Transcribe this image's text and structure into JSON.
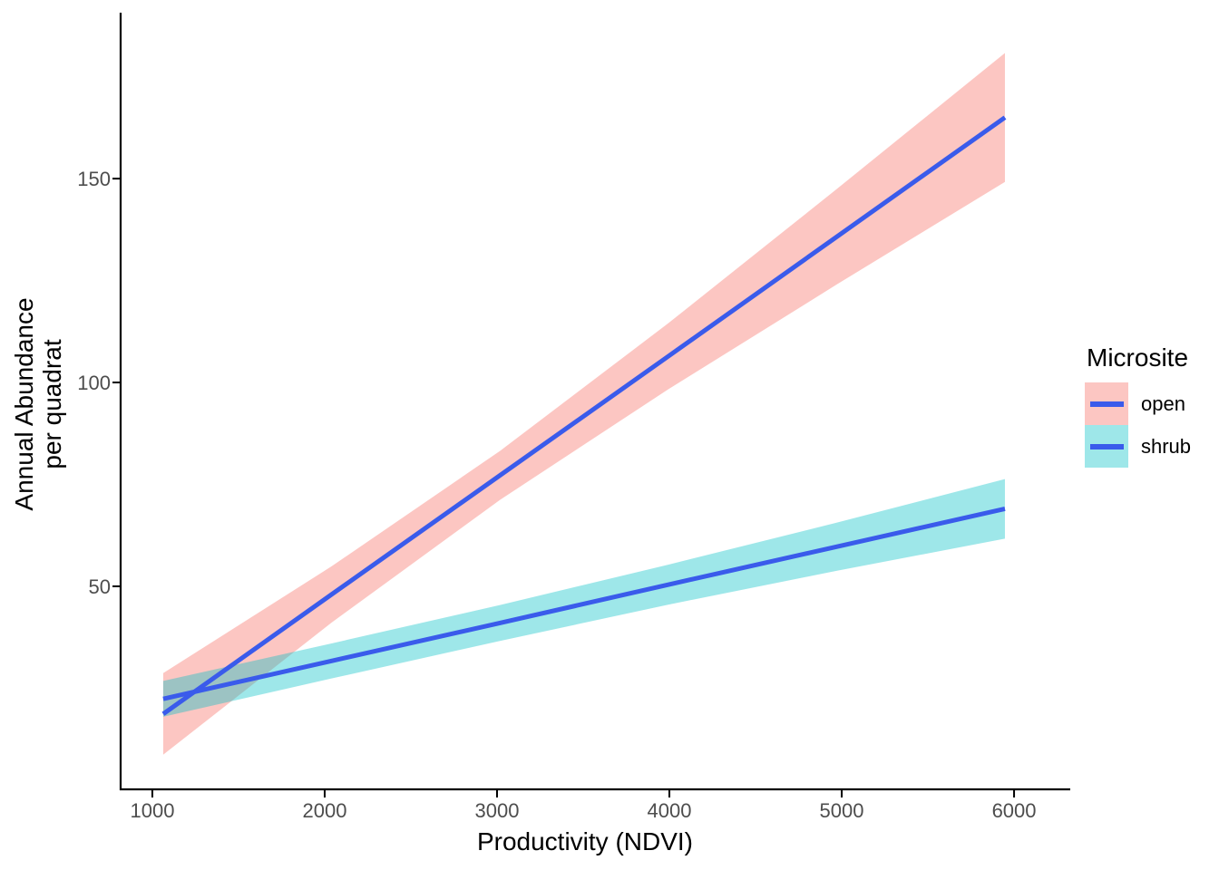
{
  "figure": {
    "background": "#FFFFFF"
  },
  "chart_data": {
    "type": "line",
    "title": "",
    "xlabel": "Productivity (NDVI)",
    "ylabel_lines": [
      "Annual Abundance",
      "per quadrat"
    ],
    "xlim": [
      816,
      6326
    ],
    "ylim": [
      0.2,
      190.7
    ],
    "x_ticks": [
      1000,
      2000,
      3000,
      4000,
      5000,
      6000
    ],
    "y_ticks": [
      50,
      100,
      150
    ],
    "grid": "off",
    "axis_color": "#000000",
    "tick_label_color": "#4D4D4D",
    "line_color": "#3A5BEB",
    "legend": {
      "title": "Microsite",
      "position": "right",
      "entries": [
        {
          "label": "open",
          "fill": "rgba(248,118,109,0.42)",
          "line_color": "#3A5BEB"
        },
        {
          "label": "shrub",
          "fill": "rgba(0,191,196,0.38)",
          "line_color": "#3A5BEB"
        }
      ]
    },
    "series": [
      {
        "name": "open",
        "style": "line+ribbon",
        "line_color": "#3A5BEB",
        "ribbon_fill": "rgba(248,118,109,0.42)",
        "x": [
          1063,
          2040,
          3017,
          3993,
          4970,
          5947
        ],
        "y_fit": [
          18.7,
          48.0,
          77.2,
          106.4,
          135.7,
          165.0
        ],
        "y_lower": [
          8.7,
          41.1,
          71.2,
          98.3,
          124.0,
          149.2
        ],
        "y_upper": [
          28.7,
          54.9,
          83.2,
          114.5,
          147.4,
          180.8
        ]
      },
      {
        "name": "shrub",
        "style": "line+ribbon",
        "line_color": "#3A5BEB",
        "ribbon_fill": "rgba(0,191,196,0.38)",
        "x": [
          1063,
          2040,
          3017,
          3993,
          4970,
          5947
        ],
        "y_fit": [
          22.4,
          31.7,
          41.0,
          50.4,
          59.7,
          69.0
        ],
        "y_lower": [
          18.0,
          27.4,
          36.6,
          45.5,
          53.8,
          61.7
        ],
        "y_upper": [
          26.8,
          36.0,
          45.4,
          55.3,
          65.6,
          76.3
        ]
      }
    ]
  }
}
